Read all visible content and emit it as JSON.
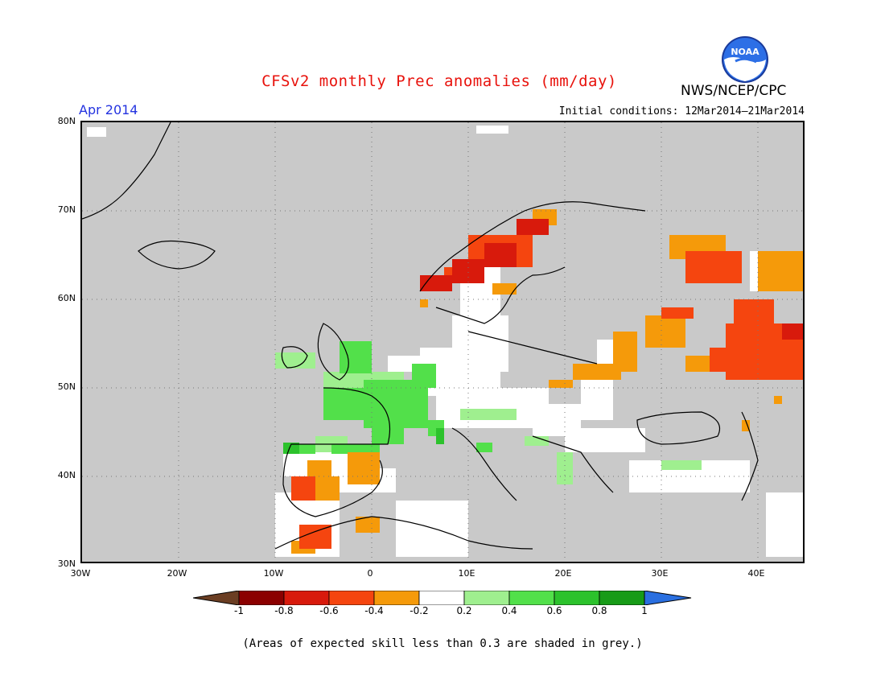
{
  "title": "CFSv2 monthly Prec anomalies (mm/day)",
  "organization": "NWS/NCEP/CPC",
  "logo_text": "NOAA",
  "month_label": "Apr 2014",
  "initial_conditions": "Initial conditions: 12Mar2014–21Mar2014",
  "lat_labels": [
    "80N",
    "70N",
    "60N",
    "50N",
    "40N",
    "30N"
  ],
  "lon_labels": [
    "30W",
    "20W",
    "10W",
    "0",
    "10E",
    "20E",
    "30E",
    "40E"
  ],
  "colorbar": {
    "labels": [
      "-1",
      "-0.8",
      "-0.6",
      "-0.4",
      "-0.2",
      "0.2",
      "0.4",
      "0.6",
      "0.8",
      "1"
    ],
    "colors": [
      "#8b0000",
      "#d81a0c",
      "#f5450f",
      "#f59a0a",
      "#ffffff",
      "#9fef8f",
      "#52e04a",
      "#2cc22c",
      "#179b17"
    ],
    "under_color": "#6b3e23",
    "over_color": "#2a6fe0"
  },
  "colors": {
    "skill_grey": "#c9c9c9",
    "title_red": "#e8120c",
    "month_blue": "#2433e0"
  },
  "note": "(Areas of expected skill less than 0.3 are shaded in grey.)"
}
